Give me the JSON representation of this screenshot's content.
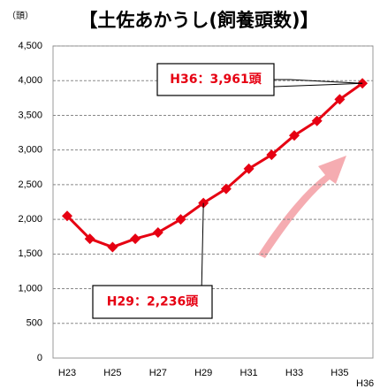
{
  "chart_data": {
    "type": "line",
    "title": "【土佐あかうし(飼養頭数)】",
    "y_unit": "（頭）",
    "categories": [
      "H23",
      null,
      "H25",
      null,
      "H27",
      null,
      "H29",
      null,
      "H31",
      null,
      "H33",
      null,
      "H35",
      "H36"
    ],
    "values": [
      2050,
      1720,
      1600,
      1720,
      1810,
      2000,
      2236,
      2440,
      2730,
      2930,
      3210,
      3420,
      3730,
      3961
    ],
    "color": "#e60012",
    "ylim": [
      0,
      4500
    ],
    "yticks": [
      0,
      500,
      {
        "value": 1000,
        "label": "1,000"
      },
      {
        "value": 1500,
        "label": "1,500"
      },
      {
        "value": 2000,
        "label": "2,000"
      },
      {
        "value": 2500,
        "label": "2,500"
      },
      {
        "value": 3000,
        "label": "3,000"
      },
      {
        "value": 3500,
        "label": "3,500"
      },
      {
        "value": 4000,
        "label": "4,000"
      },
      {
        "value": 4500,
        "label": "4,500"
      }
    ],
    "grid": true,
    "annotations": [
      {
        "text": "H29：2,236頭",
        "index": 6
      },
      {
        "text": "H36：3,961頭",
        "index": 13
      }
    ]
  }
}
